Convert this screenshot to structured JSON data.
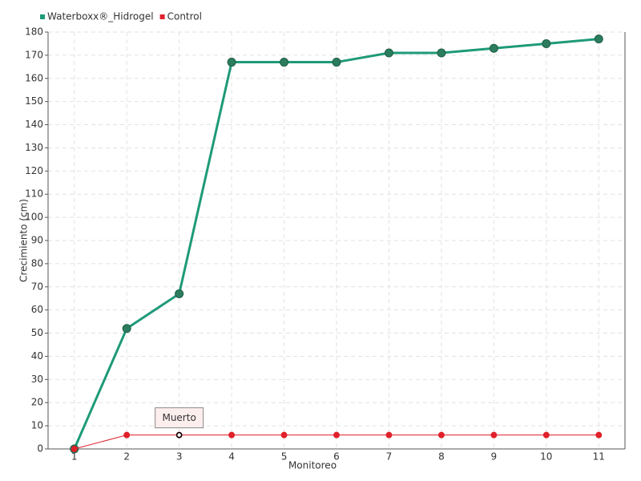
{
  "chart_data": {
    "type": "line",
    "x_label": "Monitoreo",
    "y_label": "Crecimiento (cm)",
    "categories": [
      "1",
      "2",
      "3",
      "4",
      "5",
      "6",
      "7",
      "8",
      "9",
      "10",
      "11"
    ],
    "series": [
      {
        "name": "Waterboxx®_Hidrogel",
        "color": "#1e9a78",
        "marker_color": "#2b7d5e",
        "values": [
          0,
          52,
          67,
          167,
          167,
          167,
          171,
          171,
          173,
          175,
          177
        ]
      },
      {
        "name": "Control",
        "color": "#e0202a",
        "marker_color": "#e0202a",
        "values": [
          0,
          6,
          6,
          6,
          6,
          6,
          6,
          6,
          6,
          6,
          6
        ]
      }
    ],
    "annotation": {
      "text": "Muerto",
      "series": "Control",
      "category": "3"
    },
    "ylim": [
      0,
      180
    ],
    "yticks": [
      0,
      10,
      20,
      30,
      40,
      50,
      60,
      70,
      80,
      90,
      100,
      110,
      120,
      130,
      140,
      150,
      160,
      170,
      180
    ],
    "grid": true,
    "legend": "top-left"
  }
}
